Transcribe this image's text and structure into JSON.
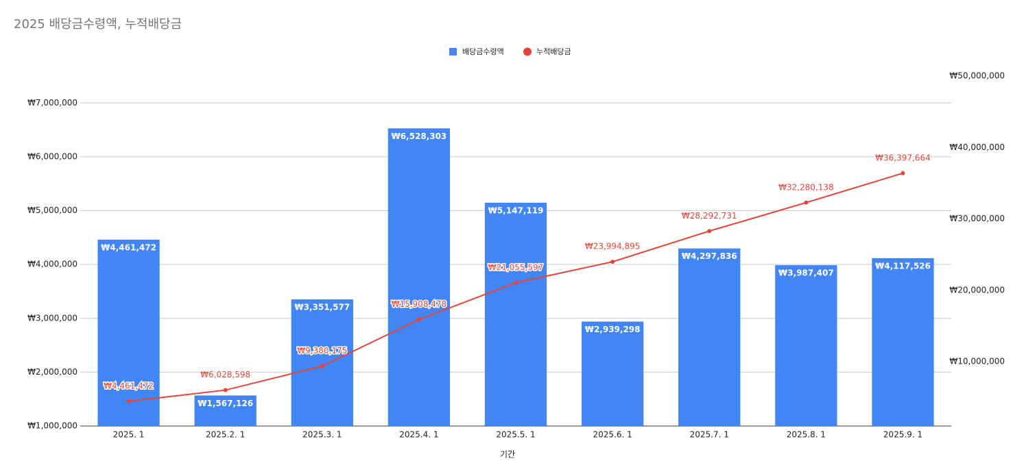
{
  "chart_data": {
    "type": "combo",
    "title": "2025 배당금수령액, 누적배당금",
    "x_label": "기간",
    "categories": [
      "2025. 1",
      "2025.2. 1",
      "2025.3. 1",
      "2025.4. 1",
      "2025.5. 1",
      "2025.6. 1",
      "2025.7. 1",
      "2025.8. 1",
      "2025.9. 1"
    ],
    "series": [
      {
        "name": "배당금수령액",
        "type": "bar",
        "color": "#4285f4",
        "values": [
          4461472,
          1567126,
          3351577,
          6528303,
          5147119,
          2939298,
          4297836,
          3987407,
          4117526
        ],
        "value_labels": [
          "₩4,461,472",
          "₩1,567,126",
          "₩3,351,577",
          "₩6,528,303",
          "₩5,147,119",
          "₩2,939,298",
          "₩4,297,836",
          "₩3,987,407",
          "₩4,117,526"
        ]
      },
      {
        "name": "누적배당금",
        "type": "line",
        "axis": "y2",
        "color": "#ea4335",
        "values": [
          4461472,
          6028598,
          9380175,
          15908478,
          21055597,
          23994895,
          28292731,
          32280138,
          36397664
        ],
        "value_labels": [
          "₩4,461,472",
          "₩6,028,598",
          "₩9,380,175",
          "₩15,908,478",
          "₩21,055,597",
          "₩23,994,895",
          "₩28,292,731",
          "₩32,280,138",
          "₩36,397,664"
        ]
      }
    ],
    "ylim": [
      1000000,
      7500000
    ],
    "yticks": [
      {
        "value": 1000000,
        "label": "₩1,000,000"
      },
      {
        "value": 2000000,
        "label": "₩2,000,000"
      },
      {
        "value": 3000000,
        "label": "₩3,000,000"
      },
      {
        "value": 4000000,
        "label": "₩4,000,000"
      },
      {
        "value": 5000000,
        "label": "₩5,000,000"
      },
      {
        "value": 6000000,
        "label": "₩6,000,000"
      },
      {
        "value": 7000000,
        "label": "₩7,000,000"
      }
    ],
    "y2lim": [
      1000000,
      50000000
    ],
    "y2ticks": [
      {
        "value": 10000000,
        "label": "₩10,000,000"
      },
      {
        "value": 20000000,
        "label": "₩20,000,000"
      },
      {
        "value": 30000000,
        "label": "₩30,000,000"
      },
      {
        "value": 40000000,
        "label": "₩40,000,000"
      },
      {
        "value": 50000000,
        "label": "₩50,000,000"
      }
    ],
    "grid": true,
    "legend": "top"
  }
}
